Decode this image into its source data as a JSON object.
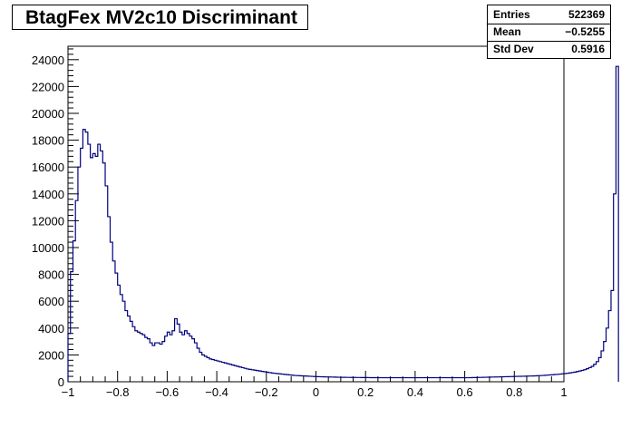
{
  "chart_data": {
    "type": "histogram",
    "title": "BtagFex MV2c10 Discriminant",
    "stats": {
      "entries_label": "Entries",
      "entries_value": "522369",
      "mean_label": "Mean",
      "mean_value": "−0.5255",
      "stddev_label": "Std Dev",
      "stddev_value": "0.5916"
    },
    "xlim": [
      -1,
      1
    ],
    "ylim": [
      0,
      25000
    ],
    "x_ticks": [
      -1,
      -0.8,
      -0.6,
      -0.4,
      -0.2,
      0,
      0.2,
      0.4,
      0.6,
      0.8,
      1
    ],
    "x_tick_labels": [
      "−1",
      "−0.8",
      "−0.6",
      "−0.4",
      "−0.2",
      "0",
      "0.2",
      "0.4",
      "0.6",
      "0.8",
      "1"
    ],
    "y_ticks": [
      0,
      2000,
      4000,
      6000,
      8000,
      10000,
      12000,
      14000,
      16000,
      18000,
      20000,
      22000,
      24000
    ],
    "y_tick_labels": [
      "0",
      "2000",
      "4000",
      "6000",
      "8000",
      "10000",
      "12000",
      "14000",
      "16000",
      "18000",
      "20000",
      "22000",
      "24000"
    ],
    "bin_width": 0.01,
    "values": [
      3600,
      8200,
      10500,
      13500,
      16000,
      17400,
      18800,
      18600,
      17700,
      16700,
      17000,
      16800,
      17700,
      17200,
      16300,
      14600,
      12300,
      10400,
      9000,
      8100,
      7200,
      6500,
      6000,
      5300,
      4900,
      4500,
      4100,
      3800,
      3700,
      3600,
      3500,
      3300,
      3200,
      2900,
      2700,
      2900,
      2900,
      2800,
      3000,
      3400,
      3700,
      3500,
      3800,
      4700,
      4300,
      3700,
      3500,
      3800,
      3600,
      3400,
      3200,
      2900,
      2500,
      2200,
      2000,
      1900,
      1800,
      1700,
      1650,
      1600,
      1550,
      1500,
      1450,
      1400,
      1350,
      1300,
      1250,
      1200,
      1150,
      1100,
      1050,
      1000,
      950,
      920,
      890,
      860,
      830,
      800,
      770,
      740,
      710,
      680,
      650,
      630,
      610,
      590,
      570,
      550,
      530,
      510,
      490,
      470,
      460,
      450,
      440,
      430,
      420,
      410,
      400,
      390,
      380,
      375,
      370,
      365,
      360,
      355,
      350,
      345,
      340,
      335,
      330,
      328,
      326,
      324,
      322,
      320,
      318,
      316,
      314,
      312,
      310,
      308,
      306,
      304,
      302,
      300,
      300,
      300,
      300,
      300,
      300,
      300,
      300,
      300,
      300,
      300,
      300,
      300,
      300,
      300,
      300,
      300,
      300,
      300,
      300,
      300,
      300,
      300,
      300,
      300,
      300,
      300,
      300,
      300,
      300,
      300,
      300,
      300,
      300,
      300,
      300,
      300,
      305,
      310,
      315,
      320,
      325,
      330,
      335,
      340,
      345,
      350,
      355,
      360,
      365,
      370,
      375,
      380,
      385,
      390,
      395,
      400,
      405,
      410,
      415,
      420,
      425,
      430,
      440,
      450,
      460,
      470,
      480,
      495,
      510,
      525,
      540,
      555,
      570,
      590,
      610,
      630,
      660,
      690,
      720,
      760,
      800,
      850,
      900,
      970,
      1050,
      1150,
      1300,
      1500,
      1800,
      2300,
      3000,
      4000,
      5300,
      6800,
      14000,
      23500
    ]
  }
}
